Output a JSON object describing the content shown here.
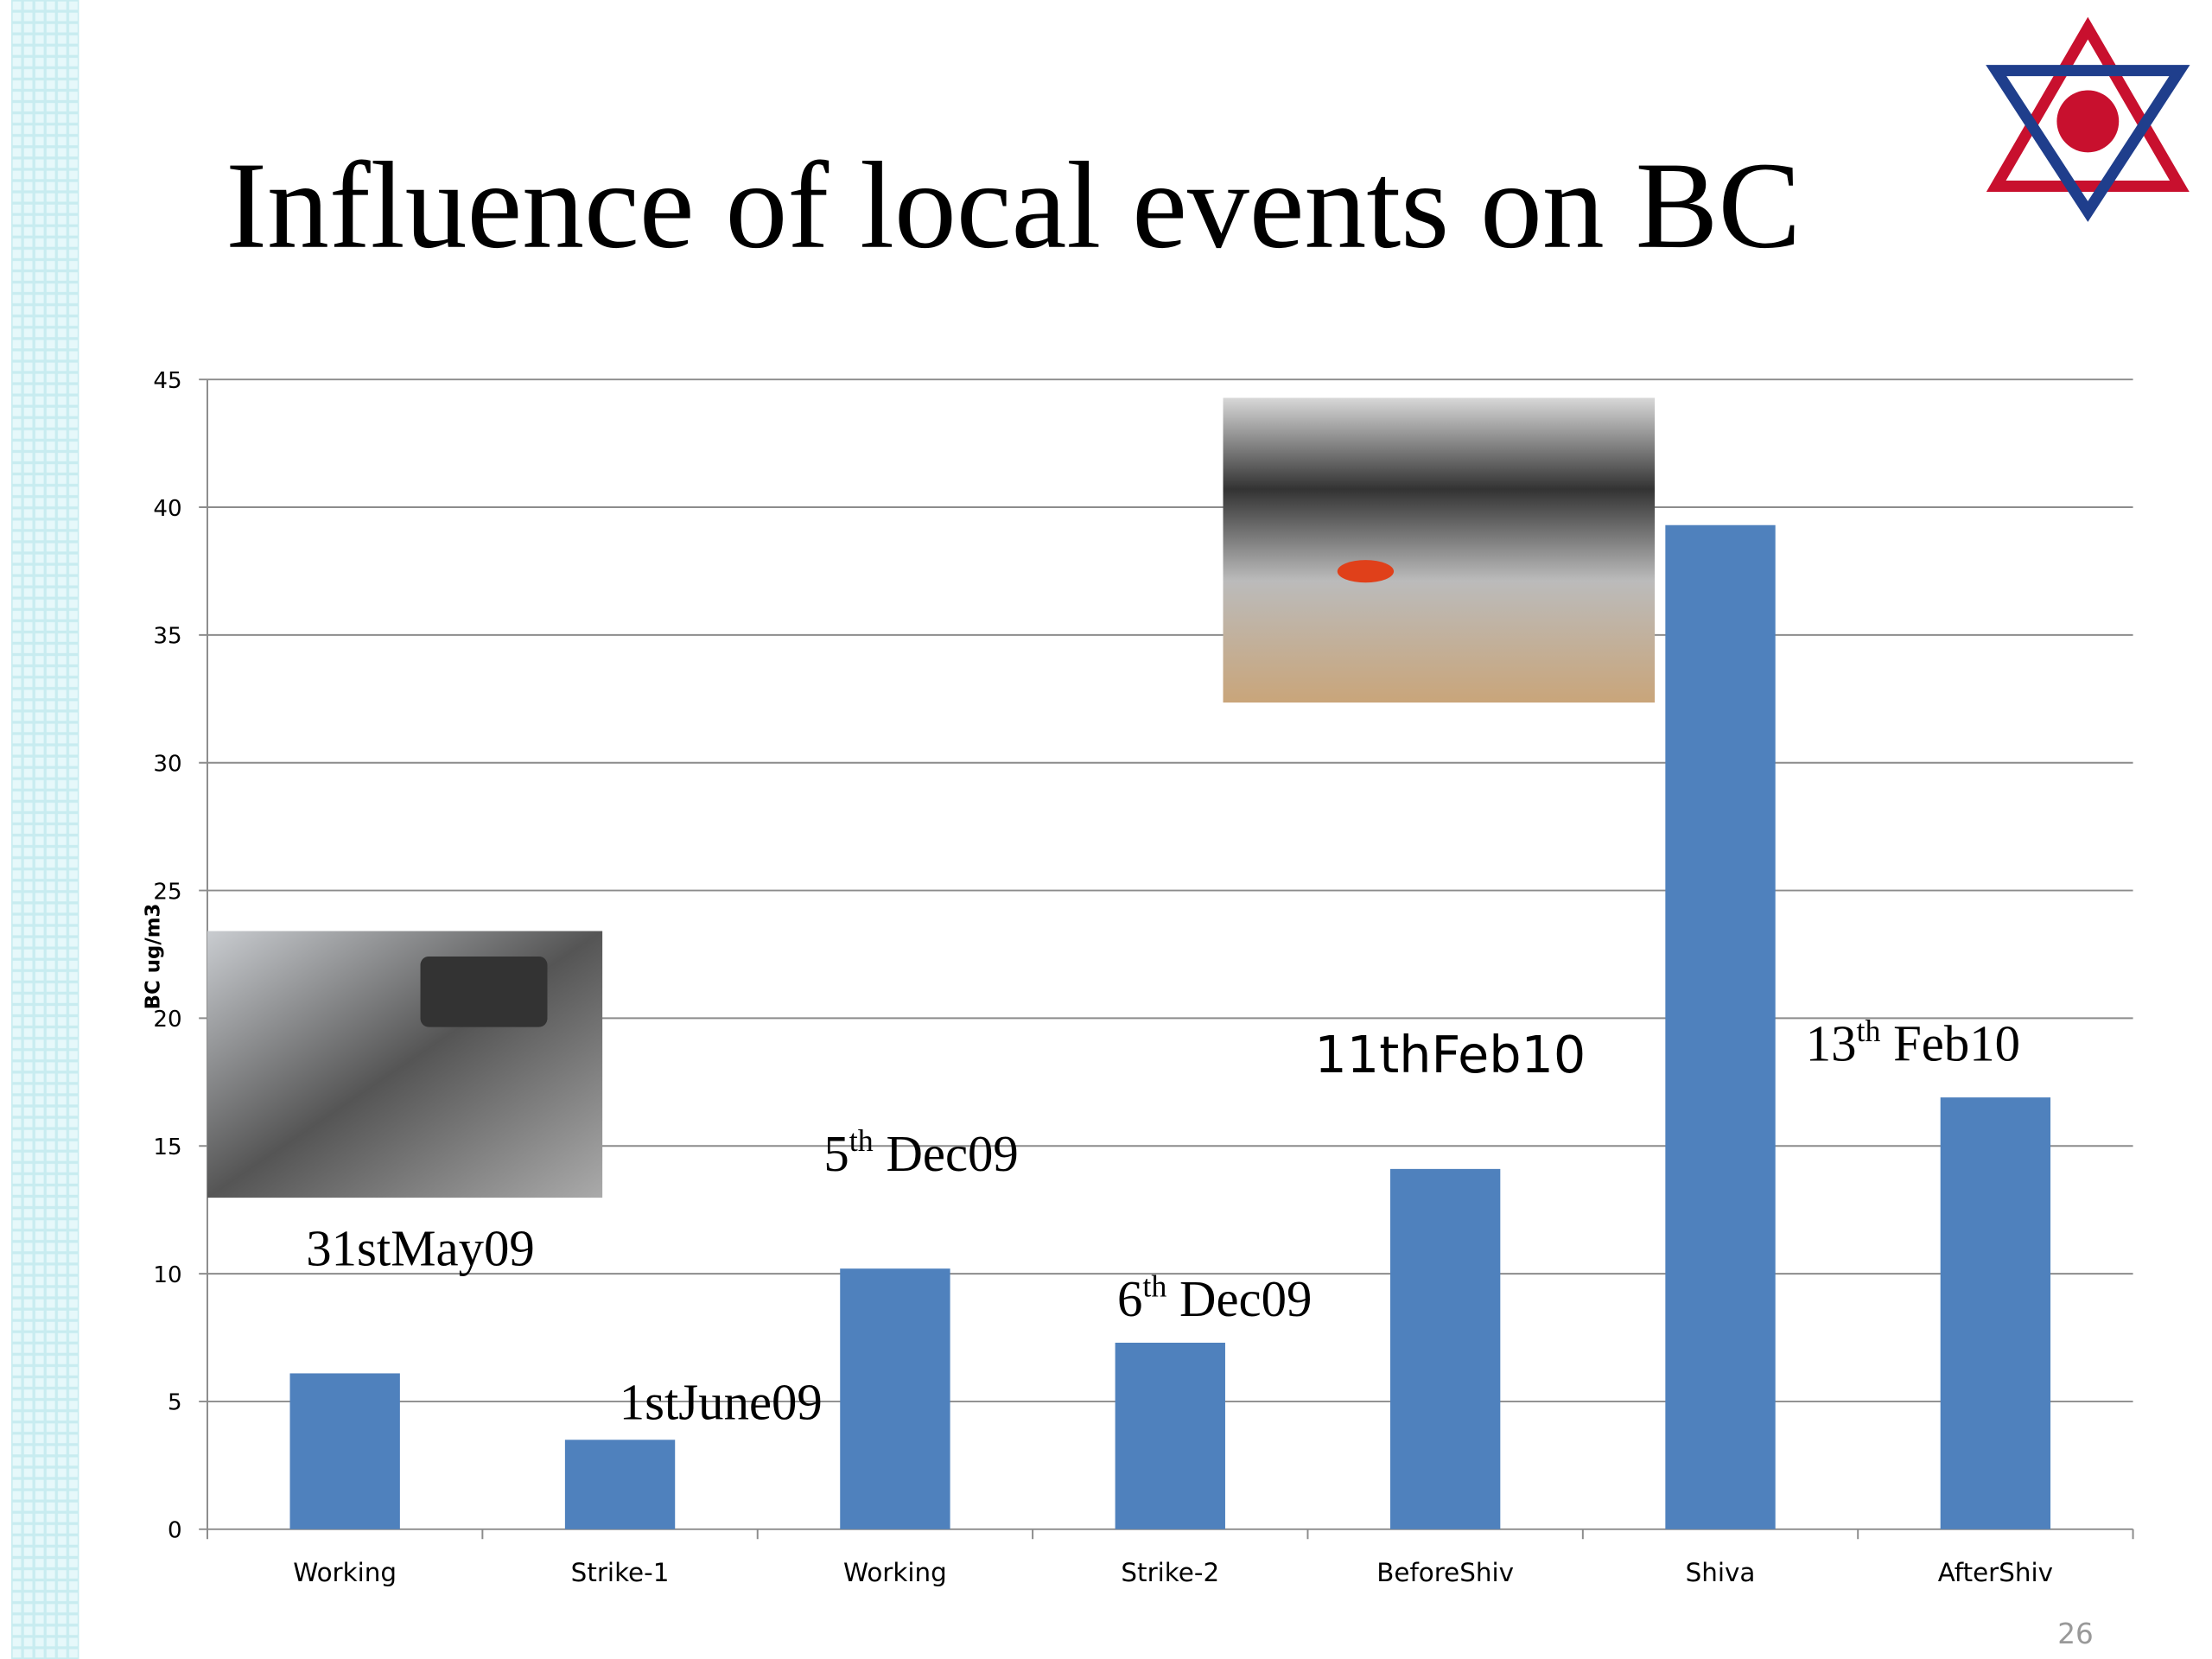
{
  "chart_data": {
    "type": "bar",
    "title": "Influence of local events on BC",
    "y_label": "BC ug/m3",
    "categories": [
      "Working",
      "Strike-1",
      "Working",
      "Strike-2",
      "BeforeShiv",
      "Shiva",
      "AfterShiv"
    ],
    "values": [
      6.1,
      3.5,
      10.2,
      7.3,
      14.1,
      39.3,
      16.9
    ],
    "color": "#4f81bd",
    "ylim": [
      0,
      45
    ],
    "yticks": [
      0,
      5,
      10,
      15,
      20,
      25,
      30,
      35,
      40,
      45
    ],
    "grid": true,
    "annotations": [
      {
        "text": "31stMay09"
      },
      {
        "text": "1stJune09"
      },
      {
        "text": "5",
        "sup": "th",
        "rest": " Dec09"
      },
      {
        "text": "6",
        "sup": "th",
        "rest": " Dec09"
      },
      {
        "text": "11thFeb10"
      },
      {
        "text": "13",
        "sup": "th",
        "rest": " Feb10"
      }
    ],
    "page_number": "26"
  }
}
